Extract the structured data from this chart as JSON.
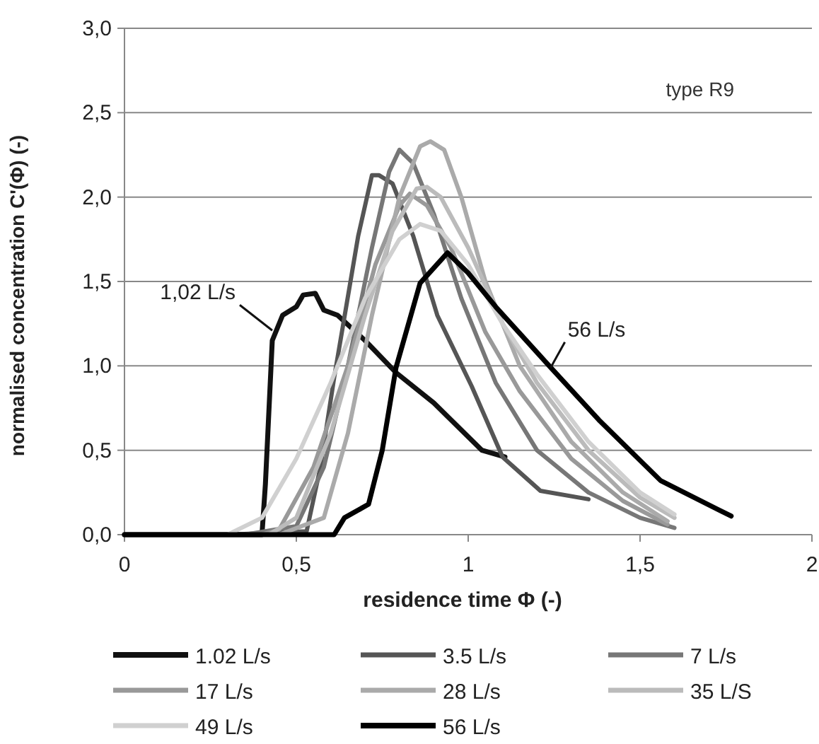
{
  "chart_data": {
    "type": "line",
    "xlabel": "residence time Φ  (-)",
    "ylabel": "normalised concentration C'(Φ) (-)",
    "xlim": [
      0,
      2
    ],
    "xticks": [
      0,
      {
        "value": 0.5,
        "label": "0,5"
      },
      1,
      {
        "value": 1.5,
        "label": "1,5"
      },
      2
    ],
    "ylim": [
      0,
      3
    ],
    "yticks": [
      {
        "value": 0,
        "label": "0,0"
      },
      {
        "value": 0.5,
        "label": "0,5"
      },
      {
        "value": 1,
        "label": "1,0"
      },
      {
        "value": 1.5,
        "label": "1,5"
      },
      {
        "value": 2,
        "label": "2,0"
      },
      {
        "value": 2.5,
        "label": "2,5"
      },
      {
        "value": 3,
        "label": "3,0"
      }
    ],
    "grid": "y",
    "legend": "bottom",
    "line_style": "solid",
    "marker": "none",
    "annotations": [
      "type R9",
      {
        "text": "1,02 L/s",
        "x": 0.43,
        "y": 1.21
      },
      {
        "text": "56 L/s",
        "x": 1.24,
        "y": 0.99
      }
    ],
    "series": [
      {
        "name": "1.02 L/s",
        "color": "#111111",
        "x": [
          0,
          0.2,
          0.4,
          0.41,
          0.43,
          0.46,
          0.5,
          0.52,
          0.555,
          0.58,
          0.62,
          0.7,
          0.79,
          0.9,
          1.04,
          1.107
        ],
        "values": [
          0,
          0,
          0,
          0.3,
          1.15,
          1.3,
          1.35,
          1.42,
          1.43,
          1.33,
          1.3,
          1.15,
          0.96,
          0.78,
          0.5,
          0.46
        ]
      },
      {
        "name": "3.5 L/s",
        "color": "#555555",
        "x": [
          0,
          0.3,
          0.53,
          0.57,
          0.61,
          0.68,
          0.72,
          0.74,
          0.78,
          0.84,
          0.91,
          1.01,
          1.1,
          1.21,
          1.35
        ],
        "values": [
          0,
          0,
          0.02,
          0.4,
          0.93,
          1.77,
          2.13,
          2.13,
          2.08,
          1.77,
          1.3,
          0.88,
          0.46,
          0.26,
          0.21
        ]
      },
      {
        "name": "7 L/s",
        "color": "#777777",
        "x": [
          0,
          0.35,
          0.5,
          0.58,
          0.65,
          0.72,
          0.77,
          0.8,
          0.84,
          0.9,
          0.98,
          1.08,
          1.2,
          1.35,
          1.5,
          1.6
        ],
        "values": [
          0,
          0,
          0.05,
          0.4,
          1.0,
          1.7,
          2.15,
          2.28,
          2.2,
          1.9,
          1.4,
          0.9,
          0.5,
          0.25,
          0.1,
          0.04
        ]
      },
      {
        "name": "17 L/s",
        "color": "#999999",
        "x": [
          0,
          0.4,
          0.45,
          0.55,
          0.65,
          0.73,
          0.8,
          0.83,
          0.88,
          0.95,
          1.05,
          1.15,
          1.3,
          1.45,
          1.58
        ],
        "values": [
          0,
          0,
          0.03,
          0.4,
          1.0,
          1.6,
          1.95,
          2.02,
          1.95,
          1.7,
          1.2,
          0.85,
          0.45,
          0.2,
          0.06
        ]
      },
      {
        "name": "28 L/s",
        "color": "#aaaaaa",
        "x": [
          0,
          0.45,
          0.58,
          0.65,
          0.72,
          0.8,
          0.86,
          0.89,
          0.93,
          0.98,
          1.05,
          1.15,
          1.3,
          1.45,
          1.58
        ],
        "values": [
          0,
          0,
          0.1,
          0.6,
          1.3,
          2.0,
          2.3,
          2.33,
          2.28,
          2.0,
          1.5,
          1.0,
          0.55,
          0.25,
          0.08
        ]
      },
      {
        "name": "35 L/S",
        "color": "#bbbbbb",
        "x": [
          0,
          0.42,
          0.5,
          0.6,
          0.7,
          0.78,
          0.85,
          0.88,
          0.92,
          1.0,
          1.1,
          1.2,
          1.35,
          1.5,
          1.6
        ],
        "values": [
          0,
          0,
          0.1,
          0.6,
          1.3,
          1.8,
          2.05,
          2.06,
          2.0,
          1.7,
          1.25,
          0.9,
          0.5,
          0.22,
          0.1
        ]
      },
      {
        "name": "49 L/s",
        "color": "#d0d0d0",
        "x": [
          0,
          0.3,
          0.4,
          0.5,
          0.6,
          0.7,
          0.8,
          0.86,
          0.92,
          1.0,
          1.1,
          1.2,
          1.35,
          1.5,
          1.6
        ],
        "values": [
          0,
          0,
          0.1,
          0.45,
          0.9,
          1.4,
          1.75,
          1.84,
          1.8,
          1.6,
          1.25,
          0.95,
          0.55,
          0.25,
          0.12
        ]
      },
      {
        "name": "56 L/s",
        "color": "#000000",
        "x": [
          0,
          0.4,
          0.61,
          0.64,
          0.71,
          0.75,
          0.79,
          0.86,
          0.94,
          1.0,
          1.08,
          1.24,
          1.38,
          1.56,
          1.765
        ],
        "values": [
          0,
          0,
          0,
          0.1,
          0.18,
          0.5,
          0.99,
          1.49,
          1.67,
          1.55,
          1.35,
          0.99,
          0.68,
          0.32,
          0.11
        ]
      }
    ]
  }
}
